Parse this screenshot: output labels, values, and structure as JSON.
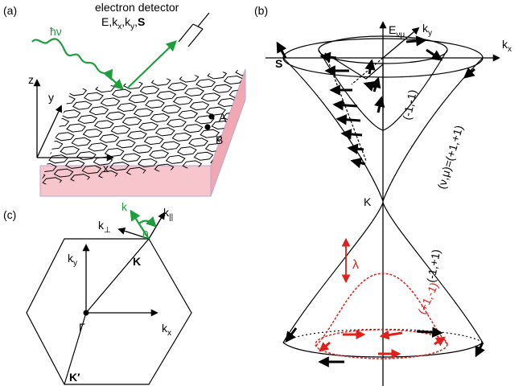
{
  "panels": {
    "a": "(a)",
    "b": "(b)",
    "c": "(c)"
  },
  "panel_a": {
    "detector_title": "electron detector",
    "detector_params": "E,kx,ky,S",
    "photon": "ħν",
    "axis_x": "x",
    "axis_y": "y",
    "axis_z": "z",
    "site_a": "A",
    "site_b": "B"
  },
  "panel_b": {
    "energy_axis": "Eνμ",
    "kx_axis": "kx",
    "ky_axis": "ky",
    "spin": "S",
    "dirac_point": "K",
    "band_upper_inner": "(-1,-1)",
    "band_upper_outer": "(ν,μ)=(+1,+1)",
    "band_lower_outer": "(-1,+1)",
    "band_lower_inner": "(+1,-1)",
    "splitting": "λ"
  },
  "panel_c": {
    "k_perp": "k⊥",
    "k_par": "k||",
    "k": "k",
    "theta": "θ",
    "ky": "ky",
    "kx": "kx",
    "K": "K",
    "K_prime": "K′",
    "Gamma": "Γ"
  },
  "colors": {
    "green": "#1e9e3c",
    "red": "#e0201a",
    "substrate": "#f6c6cc"
  }
}
